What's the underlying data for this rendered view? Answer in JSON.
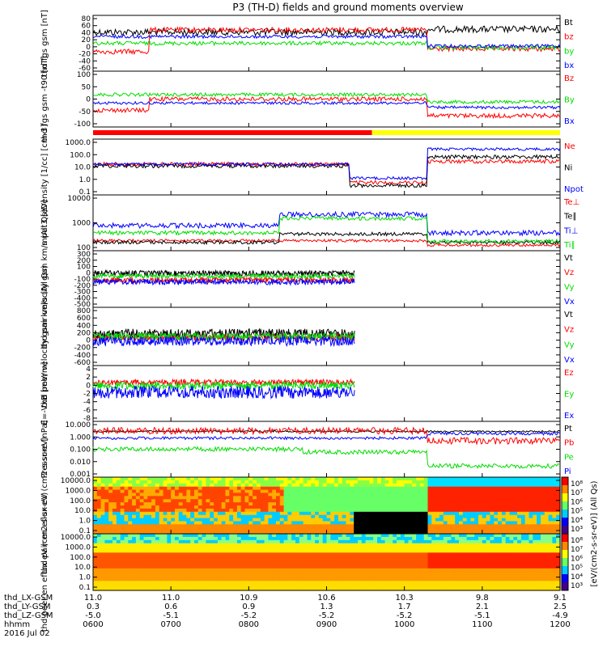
{
  "title": "P3 (TH-D) fields and ground moments overview",
  "colors": {
    "black": "#000000",
    "red": "#ff0000",
    "green": "#00dd00",
    "blue": "#0000ff",
    "yellow": "#ffff00",
    "frame": "#000000"
  },
  "status_bar": {
    "segments": [
      {
        "from": "0600",
        "to": "0935",
        "color": "#ff0000"
      },
      {
        "from": "0935",
        "to": "1200",
        "color": "#ffff00"
      }
    ]
  },
  "chart_data": [
    {
      "type": "line",
      "ylabel": "thd fgs gsm [nT]",
      "yticks": [
        "80",
        "60",
        "40",
        "20",
        "0",
        "-20",
        "-40",
        "-60"
      ],
      "ylim": [
        -60,
        80
      ],
      "legend": [
        "Bt",
        "bz",
        "by",
        "bx"
      ],
      "legend_colors": [
        "#000000",
        "#ff0000",
        "#00dd00",
        "#0000ff"
      ]
    },
    {
      "type": "line",
      "ylabel": "thd fgs gsm -t90 [nT]",
      "yticks": [
        "100",
        "50",
        "0",
        "-50",
        "-100"
      ],
      "ylim": [
        -130,
        110
      ],
      "legend": [
        "Bz",
        "By",
        "Bx"
      ],
      "legend_colors": [
        "#ff0000",
        "#00dd00",
        "#0000ff"
      ]
    },
    {
      "type": "line",
      "scale": "log",
      "ylabel": "Density [1/cc] [cm-3]",
      "yticks": [
        "1000.0",
        "100.0",
        "10.0",
        "1.0",
        "0.1"
      ],
      "legend": [
        "Ne",
        "Ni",
        "Npot"
      ],
      "legend_colors": [
        "#ff0000",
        "#000000",
        "#0000ff"
      ]
    },
    {
      "type": "line",
      "scale": "log",
      "ylabel": "mpat3 [eV]",
      "yticks": [
        "10000",
        "1000",
        "100"
      ],
      "legend": [
        "Te⊥",
        "Te∥",
        "Ti⊥",
        "Ti∥"
      ],
      "legend_colors": [
        "#ff0000",
        "#000000",
        "#0000ff",
        "#00dd00"
      ]
    },
    {
      "type": "line",
      "ylabel": "thd pair velocity gsm km/s (All Qs)",
      "yticks": [
        "300",
        "200",
        "100",
        "0",
        "-100",
        "-200",
        "-300",
        "-400",
        "-500"
      ],
      "legend": [
        "Vt",
        "Vz",
        "Vy",
        "Vx"
      ],
      "legend_colors": [
        "#000000",
        "#ff0000",
        "#00dd00",
        "#0000ff"
      ]
    },
    {
      "type": "line",
      "ylabel": "thd peer velocity gsm km/s (All Qs)",
      "yticks": [
        "800",
        "600",
        "400",
        "200",
        "0",
        "-200",
        "-400",
        "-600"
      ],
      "legend": [
        "Vt",
        "Vz",
        "Vy",
        "Vx"
      ],
      "legend_colors": [
        "#000000",
        "#ff0000",
        "#00dd00",
        "#0000ff"
      ]
    },
    {
      "type": "line",
      "ylabel": "E=-VxB [mV/m]",
      "yticks": [
        "4",
        "2",
        "0",
        "-2",
        "-4",
        "-6",
        "-8"
      ],
      "legend": [
        "Ez",
        "Ey",
        "Ex"
      ],
      "legend_colors": [
        "#ff0000",
        "#00dd00",
        "#0000ff"
      ]
    },
    {
      "type": "line",
      "scale": "log",
      "ylabel": "Pressure [nPa]",
      "yticks": [
        "10.000",
        "1.000",
        "0.100",
        "0.010",
        "0.001"
      ],
      "legend": [
        "Pt",
        "Pb",
        "Pe",
        "Pi"
      ],
      "legend_colors": [
        "#000000",
        "#ff0000",
        "#00dd00",
        "#0000ff"
      ]
    },
    {
      "type": "heatmap",
      "ylabel": "thd pair en eflux eV (cm2-s-sr-eV)",
      "yticks": [
        "10000.0",
        "1000.0",
        "100.0",
        "10.0",
        "1.0",
        "0.1"
      ]
    },
    {
      "type": "heatmap",
      "ylabel": "thd peer en eflux eV (cm2-s-sr-eV)",
      "yticks": [
        "10000.0",
        "1000.0",
        "100.0",
        "10.0",
        "1.0",
        "0.1"
      ]
    }
  ],
  "colorbar": {
    "labels": [
      "10⁸",
      "10⁷",
      "10⁶",
      "10⁵",
      "10⁴",
      "10³"
    ],
    "title": "[eV/(cm2-s-sr-eV)] (All Qs)"
  },
  "footer": {
    "rows": [
      {
        "label": "thd_LX-GSM",
        "values": [
          "11.0",
          "11.0",
          "10.9",
          "10.6",
          "10.3",
          "9.8",
          "9.1"
        ]
      },
      {
        "label": "thd_LY-GSM",
        "values": [
          "0.3",
          "0.6",
          "0.9",
          "1.3",
          "1.7",
          "2.1",
          "2.5"
        ]
      },
      {
        "label": "thd_LZ-GSM",
        "values": [
          "-5.0",
          "-5.1",
          "-5.2",
          "-5.2",
          "-5.2",
          "-5.1",
          "-4.9"
        ]
      },
      {
        "label": "hhmm",
        "values": [
          "0600",
          "0700",
          "0800",
          "0900",
          "1000",
          "1100",
          "1200"
        ]
      }
    ],
    "date": "2016 Jul 02"
  }
}
